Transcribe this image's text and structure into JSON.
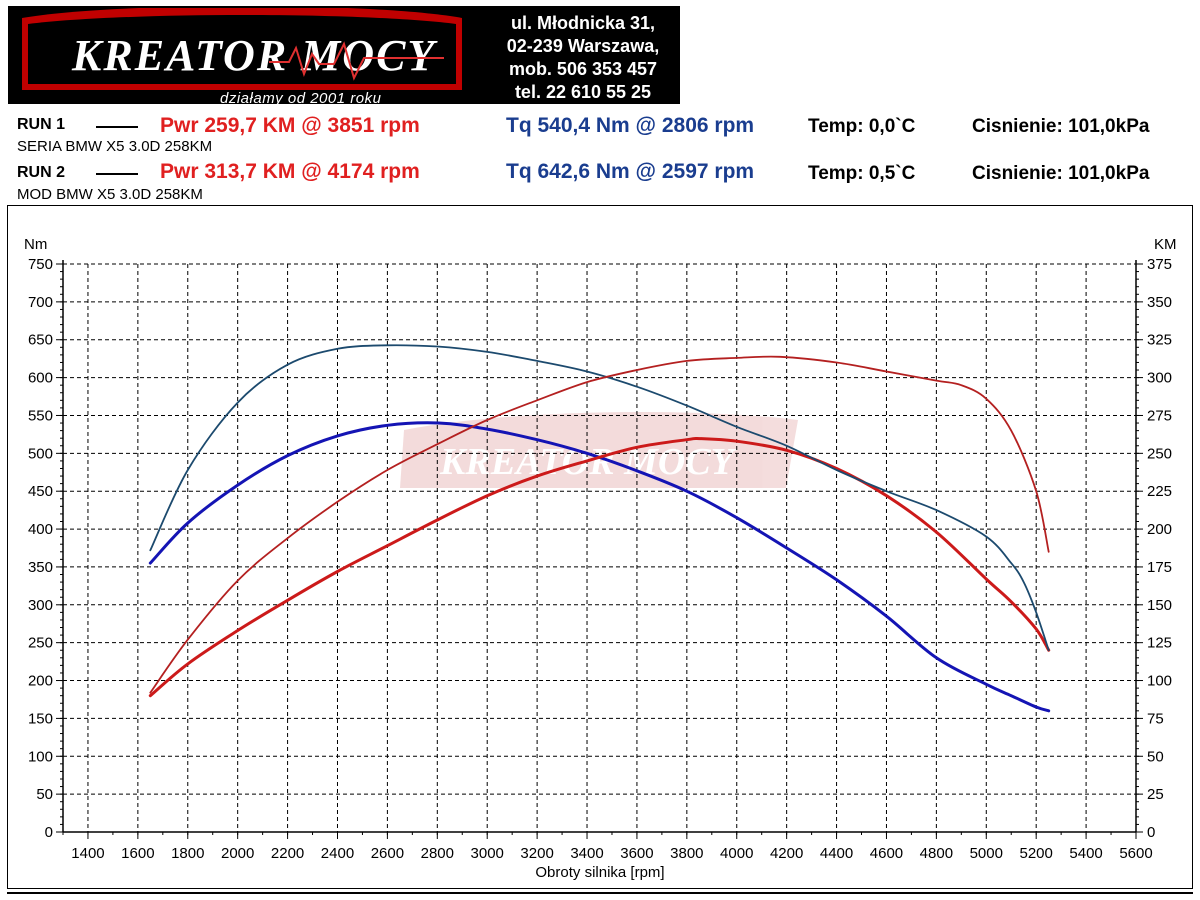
{
  "header": {
    "logo_text": "KREATOR MOCY",
    "tagline": "działamy od 2001 roku",
    "address": [
      "ul. Młodnicka 31,",
      "02-239  Warszawa,",
      "mob.  506 353 457",
      "tel.  22 610 55 25"
    ]
  },
  "runs": [
    {
      "label": "RUN 1",
      "pwr": "Pwr  259,7 KM @ 3851 rpm",
      "tq": "Tq 540,4 Nm @ 2806 rpm",
      "temp": "Temp: 0,0`C",
      "cisnienie": "Cisnienie: 101,0kPa",
      "desc": "SERIA BMW X5 3.0D 258KM"
    },
    {
      "label": "RUN 2",
      "pwr": "Pwr  313,7 KM @ 4174 rpm",
      "tq": "Tq 642,6 Nm @ 2597 rpm",
      "temp": "Temp: 0,5`C",
      "cisnienie": "Cisnienie: 101,0kPa",
      "desc": "MOD BMW X5 3.0D 258KM"
    }
  ],
  "colors": {
    "run1_torque": "#1414b4",
    "run1_power": "#cc1a1a",
    "run2_torque": "#1c4a6e",
    "run2_power": "#b42020",
    "grid": "#000000"
  },
  "chart_data": {
    "type": "line",
    "xlabel": "Obroty silnika [rpm]",
    "ylabel": "Nm",
    "y2label": "KM",
    "xlim": [
      1300,
      5600
    ],
    "ylim": [
      0,
      750
    ],
    "y2lim": [
      0,
      375
    ],
    "xticks": [
      1400,
      1600,
      1800,
      2000,
      2200,
      2400,
      2600,
      2800,
      3000,
      3200,
      3400,
      3600,
      3800,
      4000,
      4200,
      4400,
      4600,
      4800,
      5000,
      5200,
      5400,
      5600
    ],
    "yticks": [
      0,
      50,
      100,
      150,
      200,
      250,
      300,
      350,
      400,
      450,
      500,
      550,
      600,
      650,
      700,
      750
    ],
    "y2ticks": [
      0,
      25,
      50,
      75,
      100,
      125,
      150,
      175,
      200,
      225,
      250,
      275,
      300,
      325,
      350,
      375
    ],
    "grid": true,
    "series": [
      {
        "name": "RUN 1 Tq",
        "axis": "left",
        "x": [
          1650,
          1800,
          2000,
          2200,
          2400,
          2600,
          2806,
          3000,
          3200,
          3400,
          3600,
          3800,
          4000,
          4200,
          4400,
          4600,
          4800,
          5000,
          5100,
          5200,
          5250
        ],
        "y": [
          355,
          408,
          458,
          497,
          523,
          537,
          540,
          532,
          518,
          500,
          477,
          450,
          415,
          375,
          333,
          285,
          230,
          195,
          180,
          165,
          160
        ]
      },
      {
        "name": "RUN 1 Pwr",
        "axis": "right",
        "x": [
          1650,
          1800,
          2000,
          2200,
          2400,
          2600,
          2800,
          3000,
          3200,
          3400,
          3600,
          3800,
          3851,
          4000,
          4200,
          4400,
          4600,
          4800,
          5000,
          5100,
          5200,
          5250
        ],
        "y": [
          90,
          111,
          133,
          153,
          172,
          189,
          206,
          222,
          235,
          245,
          254,
          259,
          259.7,
          258,
          252,
          240,
          222,
          198,
          167,
          152,
          134,
          120
        ]
      },
      {
        "name": "RUN 2 Tq",
        "axis": "left",
        "x": [
          1650,
          1800,
          2000,
          2200,
          2400,
          2597,
          2800,
          3000,
          3200,
          3400,
          3600,
          3800,
          4000,
          4200,
          4400,
          4600,
          4800,
          5000,
          5100,
          5150,
          5200,
          5250
        ],
        "y": [
          372,
          478,
          567,
          617,
          638,
          642.6,
          641,
          634,
          622,
          608,
          588,
          563,
          535,
          510,
          478,
          450,
          425,
          390,
          355,
          330,
          290,
          240
        ]
      },
      {
        "name": "RUN 2 Pwr",
        "axis": "right",
        "x": [
          1650,
          1800,
          2000,
          2200,
          2400,
          2600,
          2800,
          3000,
          3200,
          3400,
          3600,
          3800,
          4000,
          4174,
          4400,
          4600,
          4800,
          4900,
          5000,
          5100,
          5200,
          5250
        ],
        "y": [
          92,
          127,
          166,
          194,
          218,
          239,
          256,
          272,
          285,
          297,
          305,
          311,
          313,
          313.7,
          310,
          304,
          298,
          295,
          286,
          265,
          225,
          185
        ]
      }
    ]
  }
}
